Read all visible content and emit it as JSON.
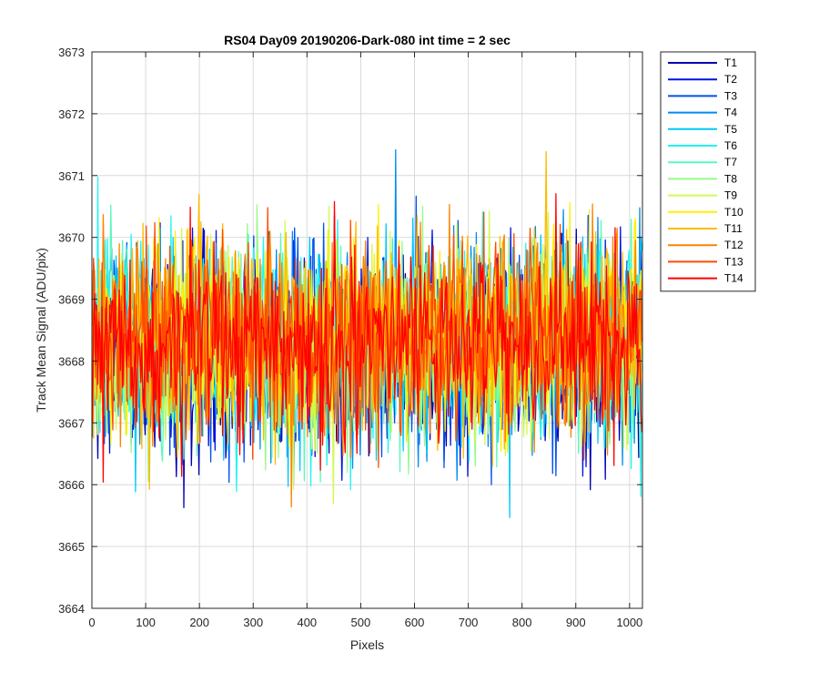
{
  "chart_data": {
    "type": "line",
    "title": "RS04 Day09 20190206-Dark-080 int time = 2 sec",
    "xlabel": "Pixels",
    "ylabel": "Track Mean Signal (ADU/pix)",
    "xlim": [
      0,
      1024
    ],
    "ylim": [
      3664,
      3673
    ],
    "xticks": [
      0,
      100,
      200,
      300,
      400,
      500,
      600,
      700,
      800,
      900,
      1000
    ],
    "yticks": [
      3664,
      3665,
      3666,
      3667,
      3668,
      3669,
      3670,
      3671,
      3672,
      3673
    ],
    "grid": true,
    "legend_position": "outside-top-right",
    "x_start": 1,
    "x_end": 1024,
    "series": [
      {
        "name": "T1",
        "color": "#0000B0",
        "mean": 3668.1,
        "spread": 1.1
      },
      {
        "name": "T2",
        "color": "#0012E0",
        "mean": 3668.2,
        "spread": 1.1
      },
      {
        "name": "T3",
        "color": "#0050F0",
        "mean": 3668.2,
        "spread": 1.1
      },
      {
        "name": "T4",
        "color": "#008CF0",
        "mean": 3668.2,
        "spread": 1.1
      },
      {
        "name": "T5",
        "color": "#00C8F8",
        "mean": 3668.3,
        "spread": 1.1
      },
      {
        "name": "T6",
        "color": "#20F4F0",
        "mean": 3668.3,
        "spread": 1.1
      },
      {
        "name": "T7",
        "color": "#5AF8C0",
        "mean": 3668.3,
        "spread": 1.1
      },
      {
        "name": "T8",
        "color": "#96FA8A",
        "mean": 3668.2,
        "spread": 1.1
      },
      {
        "name": "T9",
        "color": "#D2FA50",
        "mean": 3668.3,
        "spread": 1.1
      },
      {
        "name": "T10",
        "color": "#FFF000",
        "mean": 3668.4,
        "spread": 1.1
      },
      {
        "name": "T11",
        "color": "#FFBA00",
        "mean": 3668.4,
        "spread": 1.1
      },
      {
        "name": "T12",
        "color": "#FF8200",
        "mean": 3668.4,
        "spread": 1.1
      },
      {
        "name": "T13",
        "color": "#FF4A00",
        "mean": 3668.3,
        "spread": 1.1
      },
      {
        "name": "T14",
        "color": "#FF0000",
        "mean": 3668.3,
        "spread": 1.0
      }
    ]
  }
}
